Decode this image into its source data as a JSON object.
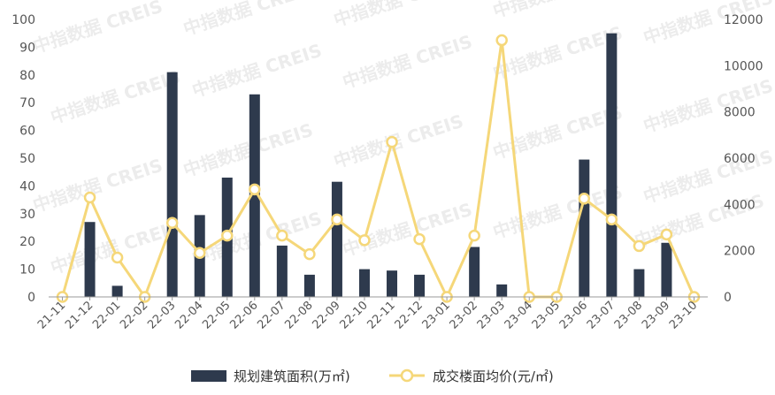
{
  "watermark": "中指数据 CREIS",
  "colors": {
    "bar": "#2e3a4d",
    "line": "#f5d779",
    "marker_fill": "#ffffff",
    "axis": "#999999",
    "tick_text": "#555555"
  },
  "chart_data": {
    "type": "bar",
    "categories": [
      "21-11",
      "21-12",
      "22-01",
      "22-02",
      "22-03",
      "22-04",
      "22-05",
      "22-06",
      "22-07",
      "22-08",
      "22-09",
      "22-10",
      "22-11",
      "22-12",
      "23-01",
      "23-02",
      "23-03",
      "23-04",
      "23-05",
      "23-06",
      "23-07",
      "23-08",
      "23-09",
      "23-10"
    ],
    "series": [
      {
        "name": "规划建筑面积(万㎡)",
        "type": "bar",
        "axis": "left",
        "values": [
          0,
          27,
          4,
          0,
          81,
          29.5,
          43,
          73,
          18.5,
          8,
          41.5,
          10,
          9.5,
          8,
          0,
          18,
          4.5,
          0,
          0,
          49.5,
          95,
          10,
          19.5,
          0
        ]
      },
      {
        "name": "成交楼面均价(元/㎡)",
        "type": "line",
        "axis": "right",
        "values": [
          0,
          4300,
          1700,
          0,
          3200,
          1900,
          2650,
          4650,
          2650,
          1850,
          3350,
          2450,
          6700,
          2500,
          0,
          2650,
          11100,
          0,
          0,
          4250,
          3350,
          2200,
          2700,
          0
        ]
      }
    ],
    "y_left": {
      "ylim": [
        0,
        100
      ],
      "ticks": [
        "0",
        "10",
        "20",
        "30",
        "40",
        "50",
        "60",
        "70",
        "80",
        "90",
        "100"
      ]
    },
    "y_right": {
      "ylim": [
        0,
        12000
      ],
      "ticks": [
        "0",
        "2000",
        "4000",
        "6000",
        "8000",
        "10000",
        "12000"
      ]
    },
    "grid": false,
    "legend": "bottom-center"
  }
}
